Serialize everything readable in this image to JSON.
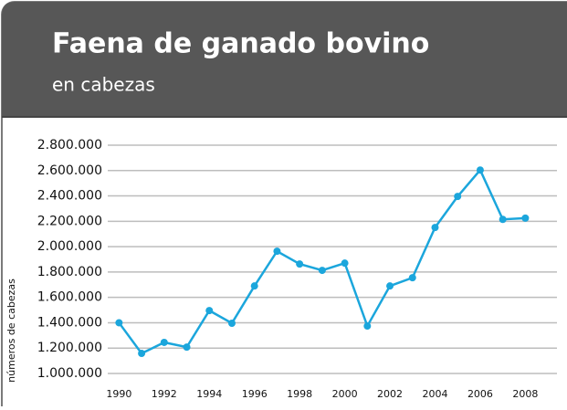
{
  "chart_data": {
    "type": "line",
    "title": "Faena de ganado bovino",
    "subtitle": "en cabezas",
    "y_label": "números de cabezas",
    "x": [
      1990,
      1991,
      1992,
      1993,
      1994,
      1995,
      1996,
      1997,
      1998,
      1999,
      2000,
      2001,
      2002,
      2003,
      2004,
      2005,
      2006,
      2007,
      2008
    ],
    "series": [
      {
        "name": null,
        "color": "#1ba6dc",
        "values": [
          1400000,
          1158000,
          1245000,
          1208000,
          1496000,
          1396000,
          1690000,
          1964000,
          1863000,
          1813000,
          1870000,
          1374000,
          1690000,
          1755000,
          2151000,
          2396000,
          2604000,
          2215000,
          2225000
        ]
      }
    ],
    "xlim": [
      1989.5,
      2009.4
    ],
    "xticks": [
      1990,
      1992,
      1994,
      1996,
      1998,
      2000,
      2002,
      2004,
      2006,
      2008
    ],
    "ylim": [
      1000000,
      2800000
    ],
    "yticks": [
      {
        "value": 1000000,
        "label": "1.000.000"
      },
      {
        "value": 1200000,
        "label": "1.200.000"
      },
      {
        "value": 1400000,
        "label": "1.400.000"
      },
      {
        "value": 1600000,
        "label": "1.600.000"
      },
      {
        "value": 1800000,
        "label": "1.800.000"
      },
      {
        "value": 2000000,
        "label": "2.000.000"
      },
      {
        "value": 2200000,
        "label": "2.200.000"
      },
      {
        "value": 2400000,
        "label": "2.400.000"
      },
      {
        "value": 2600000,
        "label": "2.600.000"
      },
      {
        "value": 2800000,
        "label": "2.800.000"
      }
    ],
    "grid": true
  }
}
